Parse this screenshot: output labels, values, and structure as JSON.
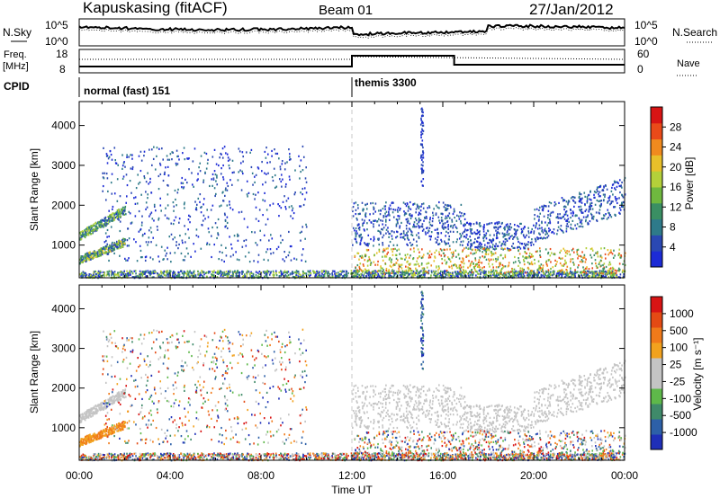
{
  "header": {
    "station": "Kapuskasing (fitACF)",
    "beam": "Beam 01",
    "date": "27/Jan/2012"
  },
  "noise_panel": {
    "left_label": "N.Sky",
    "right_label": "N.Search",
    "left_ticks": [
      "10^5",
      "10^0"
    ],
    "right_ticks": [
      "10^5",
      "10^0"
    ]
  },
  "freq_panel": {
    "left_label_1": "Freq.",
    "left_label_2": "[MHz]",
    "left_ticks": [
      "18",
      "8"
    ],
    "right_ticks": [
      "60",
      "0"
    ],
    "right_label": "Nave"
  },
  "cpid_panel": {
    "label": "CPID",
    "modes": [
      {
        "name": "normal (fast) 151",
        "start_hour": 0
      },
      {
        "name": "themis 3300",
        "start_hour": 12
      }
    ]
  },
  "chart_data": [
    {
      "type": "heatmap",
      "name": "power",
      "ylabel": "Slant Range [km]",
      "ylim": [
        180,
        4600
      ],
      "yticks": [
        1000,
        2000,
        3000,
        4000
      ],
      "xlim": [
        0,
        24
      ],
      "colorbar": {
        "label": "Power [dB]",
        "ticks": [
          "4",
          "8",
          "12",
          "16",
          "20",
          "24",
          "28"
        ],
        "colors": [
          "#1c2bd6",
          "#2a48b3",
          "#2e7a8a",
          "#3a8f63",
          "#6fb83f",
          "#b4d03a",
          "#e8c02a",
          "#f08a1e",
          "#ea4a19",
          "#d81414"
        ]
      }
    },
    {
      "type": "heatmap",
      "name": "velocity",
      "ylabel": "Slant Range [km]",
      "ylim": [
        180,
        4600
      ],
      "yticks": [
        1000,
        2000,
        3000,
        4000
      ],
      "xlim": [
        0,
        24
      ],
      "xlabel": "Time UT",
      "xtick_labels": [
        "00:00",
        "04:00",
        "08:00",
        "12:00",
        "16:00",
        "20:00",
        "00:00"
      ],
      "colorbar": {
        "label": "Velocity [m s⁻¹]",
        "ticks": [
          "1000",
          "500",
          "100",
          "25",
          "-25",
          "-100",
          "-500",
          "-1000"
        ],
        "colors": [
          "#1f2fb8",
          "#2d60a8",
          "#3f8a6a",
          "#5eb84a",
          "#c4c4c4",
          "#c4c4c4",
          "#f2a21e",
          "#f07a1a",
          "#e44a14",
          "#d81414"
        ]
      }
    }
  ]
}
